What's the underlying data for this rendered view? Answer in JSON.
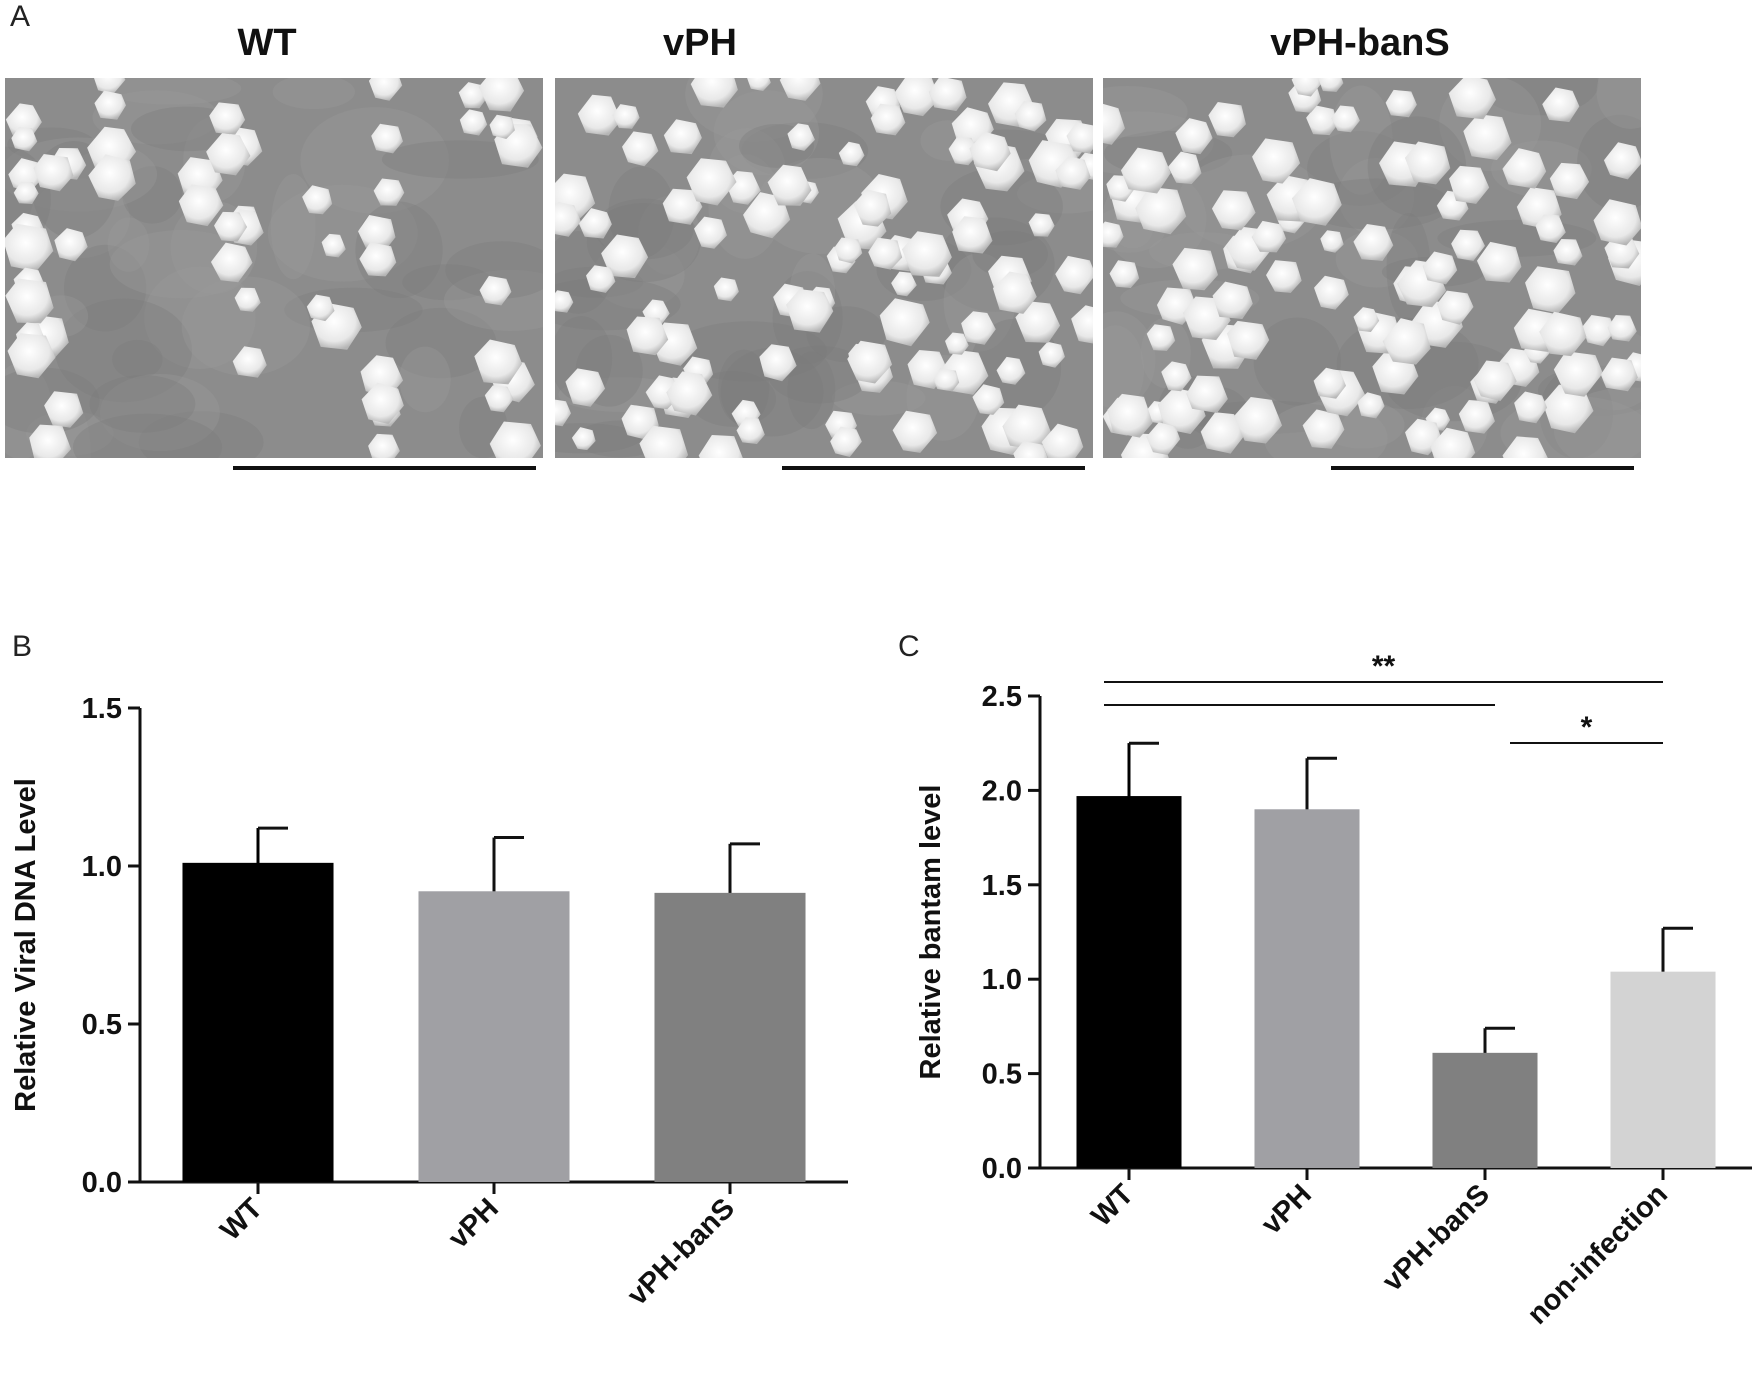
{
  "panel_labels": {
    "a": "A",
    "b": "B",
    "c": "C"
  },
  "micrographs": {
    "titles": [
      "WT",
      "vPH",
      "vPH-banS"
    ]
  },
  "colors": {
    "WT": "#000000",
    "vPH": "#a0a0a4",
    "vPH-banS": "#808080",
    "non-infection": "#d3d3d3"
  },
  "chart_data": [
    {
      "type": "bar",
      "panel": "B",
      "categories": [
        "WT",
        "vPH",
        "vPH-banS"
      ],
      "values": [
        1.01,
        0.92,
        0.915
      ],
      "errors": [
        0.11,
        0.17,
        0.155
      ],
      "ylabel": "Relative Viral DNA Level",
      "ylim": [
        0,
        1.5
      ],
      "yticks": [
        "0.0",
        "0.5",
        "1.0",
        "1.5"
      ],
      "grid": false
    },
    {
      "type": "bar",
      "panel": "C",
      "categories": [
        "WT",
        "vPH",
        "vPH-banS",
        "non-infection"
      ],
      "values": [
        1.97,
        1.9,
        0.61,
        1.04
      ],
      "errors": [
        0.28,
        0.27,
        0.13,
        0.23
      ],
      "ylabel": "Relative bantam level",
      "ylim": [
        0,
        2.5
      ],
      "yticks": [
        "0.0",
        "0.5",
        "1.0",
        "1.5",
        "2.0",
        "2.5"
      ],
      "grid": false,
      "annotations": [
        {
          "from": "WT",
          "to": "non-infection",
          "text": "**"
        },
        {
          "from": "WT",
          "to": "vPH-banS",
          "text": ""
        },
        {
          "from": "vPH-banS",
          "to": "non-infection",
          "text": "*"
        }
      ]
    }
  ]
}
